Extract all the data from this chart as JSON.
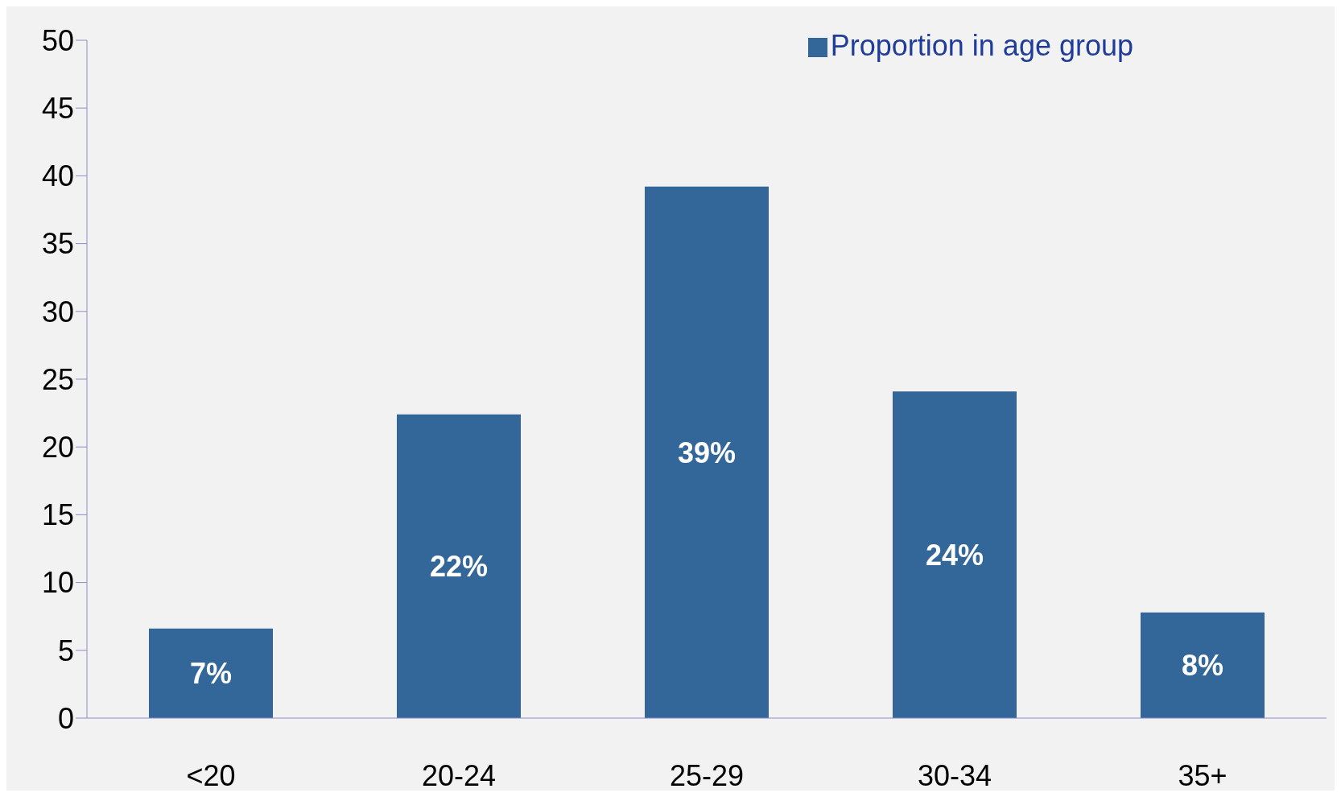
{
  "chart_data": {
    "type": "bar",
    "categories": [
      "<20",
      "20-24",
      "25-29",
      "30-34",
      "35+"
    ],
    "series": [
      {
        "name": "Proportion in age group",
        "color": "#336699",
        "values": [
          6.6,
          22.4,
          39.2,
          24.1,
          7.8
        ],
        "value_labels": [
          "7%",
          "22%",
          "39%",
          "24%",
          "8%"
        ]
      }
    ],
    "ylim": [
      0,
      50
    ],
    "yticks": [
      0,
      5,
      10,
      15,
      20,
      25,
      30,
      35,
      40,
      45,
      50
    ],
    "legend": "top right"
  }
}
